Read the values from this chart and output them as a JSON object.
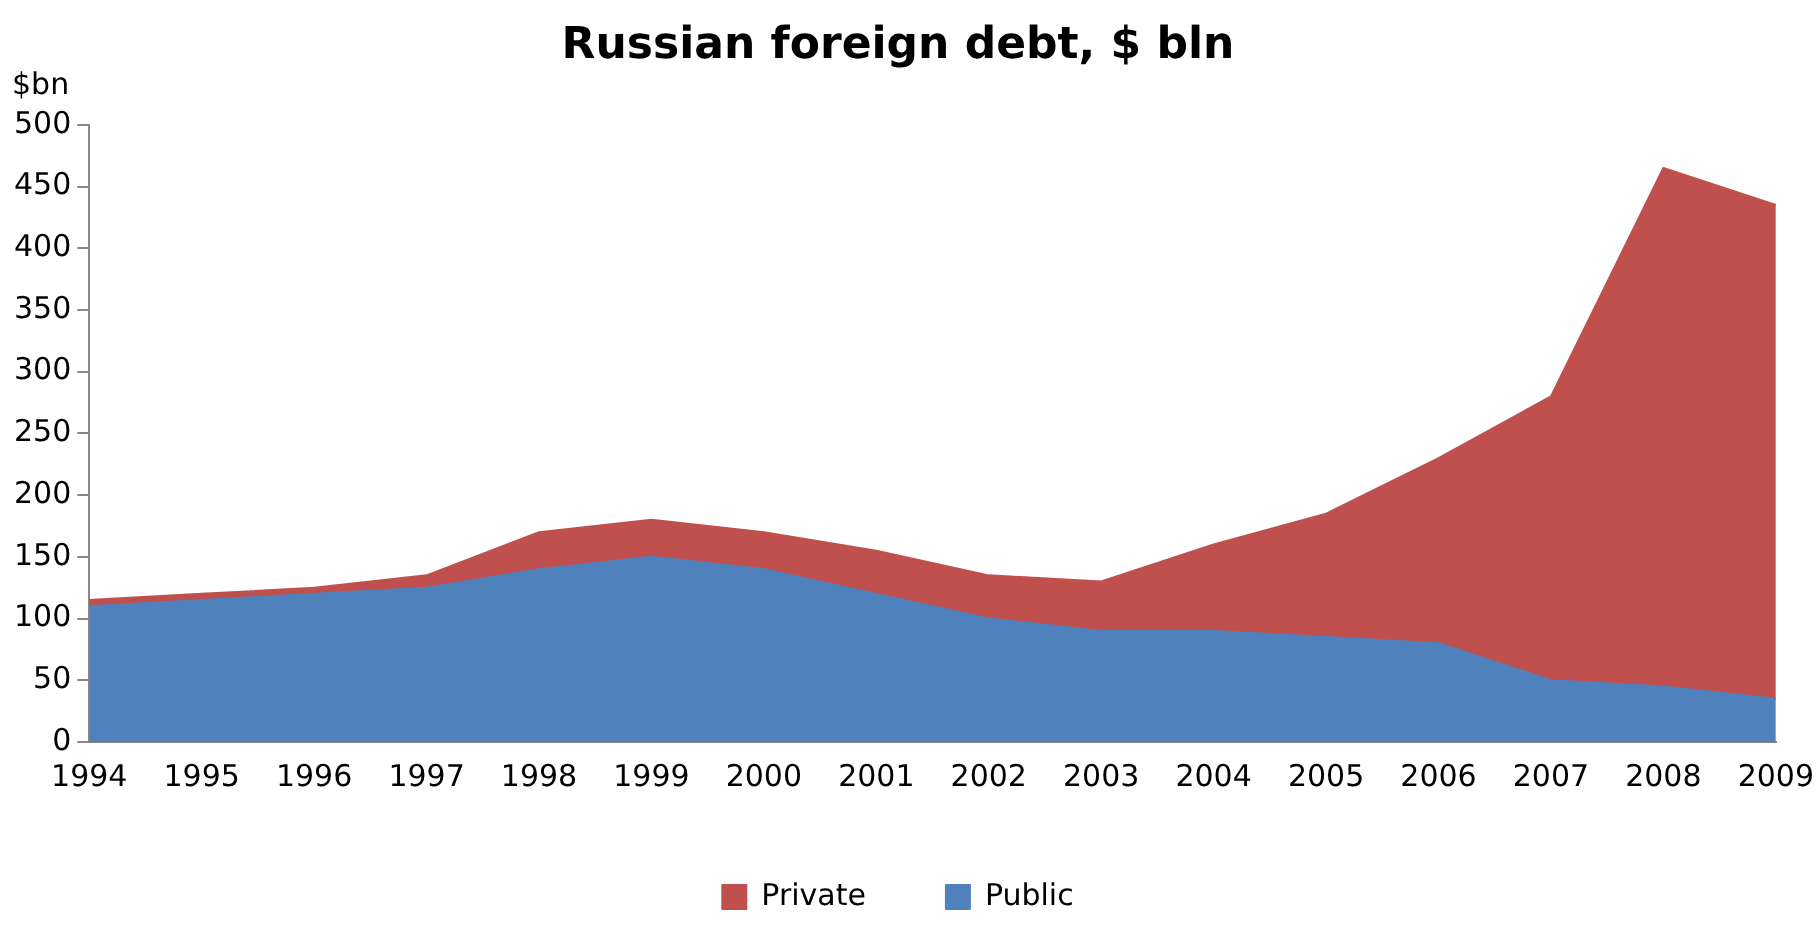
{
  "chart_data": {
    "type": "area",
    "title": "Russian foreign debt, $ bln",
    "ylabel": "$bn",
    "categories": [
      "1994",
      "1995",
      "1996",
      "1997",
      "1998",
      "1999",
      "2000",
      "2001",
      "2002",
      "2003",
      "2004",
      "2005",
      "2006",
      "2007",
      "2008",
      "2009"
    ],
    "stacked": true,
    "series": [
      {
        "name": "Public",
        "color": "#4f81bd",
        "values": [
          110,
          115,
          120,
          125,
          140,
          150,
          140,
          120,
          100,
          90,
          90,
          85,
          80,
          50,
          45,
          35
        ]
      },
      {
        "name": "Private",
        "color": "#c0504d",
        "values": [
          5,
          5,
          5,
          10,
          30,
          30,
          30,
          35,
          35,
          40,
          70,
          100,
          150,
          230,
          420,
          400
        ]
      }
    ],
    "ylim": [
      0,
      500
    ],
    "yticks": [
      0,
      50,
      100,
      150,
      200,
      250,
      300,
      350,
      400,
      450,
      500
    ],
    "grid": false,
    "legend": "bottom"
  }
}
